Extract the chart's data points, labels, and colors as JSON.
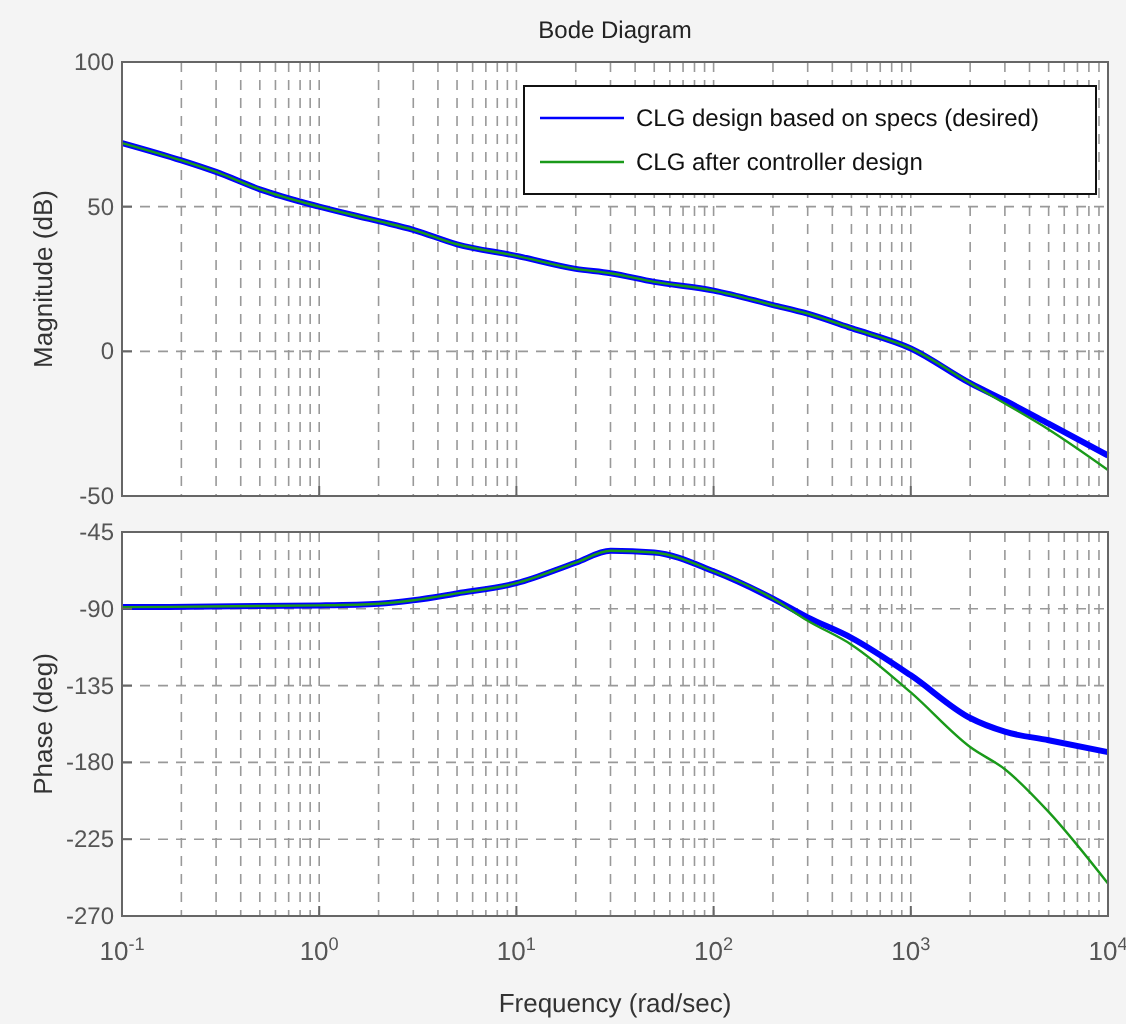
{
  "chart_data": [
    {
      "type": "line",
      "title": "Bode Diagram",
      "ylabel": "Magnitude (dB)",
      "log": "x",
      "grid": true,
      "legend": "top right",
      "tick_labels": "y",
      "xlim": [
        0.1,
        10000
      ],
      "xticks": [
        {
          "value": 0.1,
          "label": null
        },
        {
          "value": 1,
          "label": null
        },
        {
          "value": 10,
          "label": null
        },
        {
          "value": 100,
          "label": null
        },
        {
          "value": 1000,
          "label": null
        },
        {
          "value": 10000,
          "label": null
        }
      ],
      "ylim": [
        -50,
        100
      ],
      "yticks": [
        -50,
        0,
        50,
        100
      ],
      "x": [
        0.1,
        0.2,
        0.3,
        0.5,
        1,
        2,
        3,
        5,
        10,
        20,
        30,
        50,
        100,
        200,
        300,
        500,
        1000,
        2000,
        3000,
        5000,
        10000
      ],
      "series": [
        {
          "name": "CLG design based on specs (desired)",
          "color": "#0000ff",
          "values": [
            72,
            66,
            62,
            56,
            50,
            45,
            42,
            37,
            33,
            28.5,
            27,
            24,
            21,
            16,
            13,
            8,
            1,
            -11,
            -17,
            -25,
            -36
          ]
        },
        {
          "name": "CLG after controller design",
          "color": "#1a9a1a",
          "values": [
            72,
            66,
            62,
            56,
            50,
            45,
            42,
            37,
            33,
            28.5,
            27,
            24,
            21,
            16,
            13,
            8,
            1,
            -11,
            -18,
            -27,
            -41
          ]
        }
      ]
    },
    {
      "type": "line",
      "xlabel": "Frequency  (rad/sec)",
      "ylabel": "Phase (deg)",
      "log": "x",
      "grid": true,
      "xlim": [
        0.1,
        10000
      ],
      "xticks": [
        {
          "value": 0.1,
          "label": "10$^{-1}$"
        },
        {
          "value": 1,
          "label": "10$^{0}$"
        },
        {
          "value": 10,
          "label": "10$^{1}$"
        },
        {
          "value": 100,
          "label": "10$^{2}$"
        },
        {
          "value": 1000,
          "label": "10$^{3}$"
        },
        {
          "value": 10000,
          "label": "10$^{4}$"
        }
      ],
      "ylim": [
        -270,
        -45
      ],
      "yticks": [
        -270,
        -225,
        -180,
        -135,
        -90,
        -45
      ],
      "x": [
        0.1,
        1,
        2,
        3,
        5,
        10,
        20,
        30,
        50,
        100,
        200,
        300,
        500,
        1000,
        2000,
        3000,
        5000,
        10000
      ],
      "series": [
        {
          "color": "#0000ff",
          "values": [
            -89,
            -88,
            -87,
            -85,
            -81,
            -75,
            -63,
            -56,
            -57,
            -68,
            -84,
            -95,
            -107,
            -129,
            -154,
            -162,
            -167,
            -174
          ]
        },
        {
          "color": "#1a9a1a",
          "values": [
            -89,
            -88,
            -87,
            -85,
            -81,
            -75,
            -63,
            -56,
            -57,
            -68,
            -84,
            -97,
            -111,
            -139,
            -171,
            -184,
            -209,
            -251
          ]
        }
      ]
    }
  ]
}
